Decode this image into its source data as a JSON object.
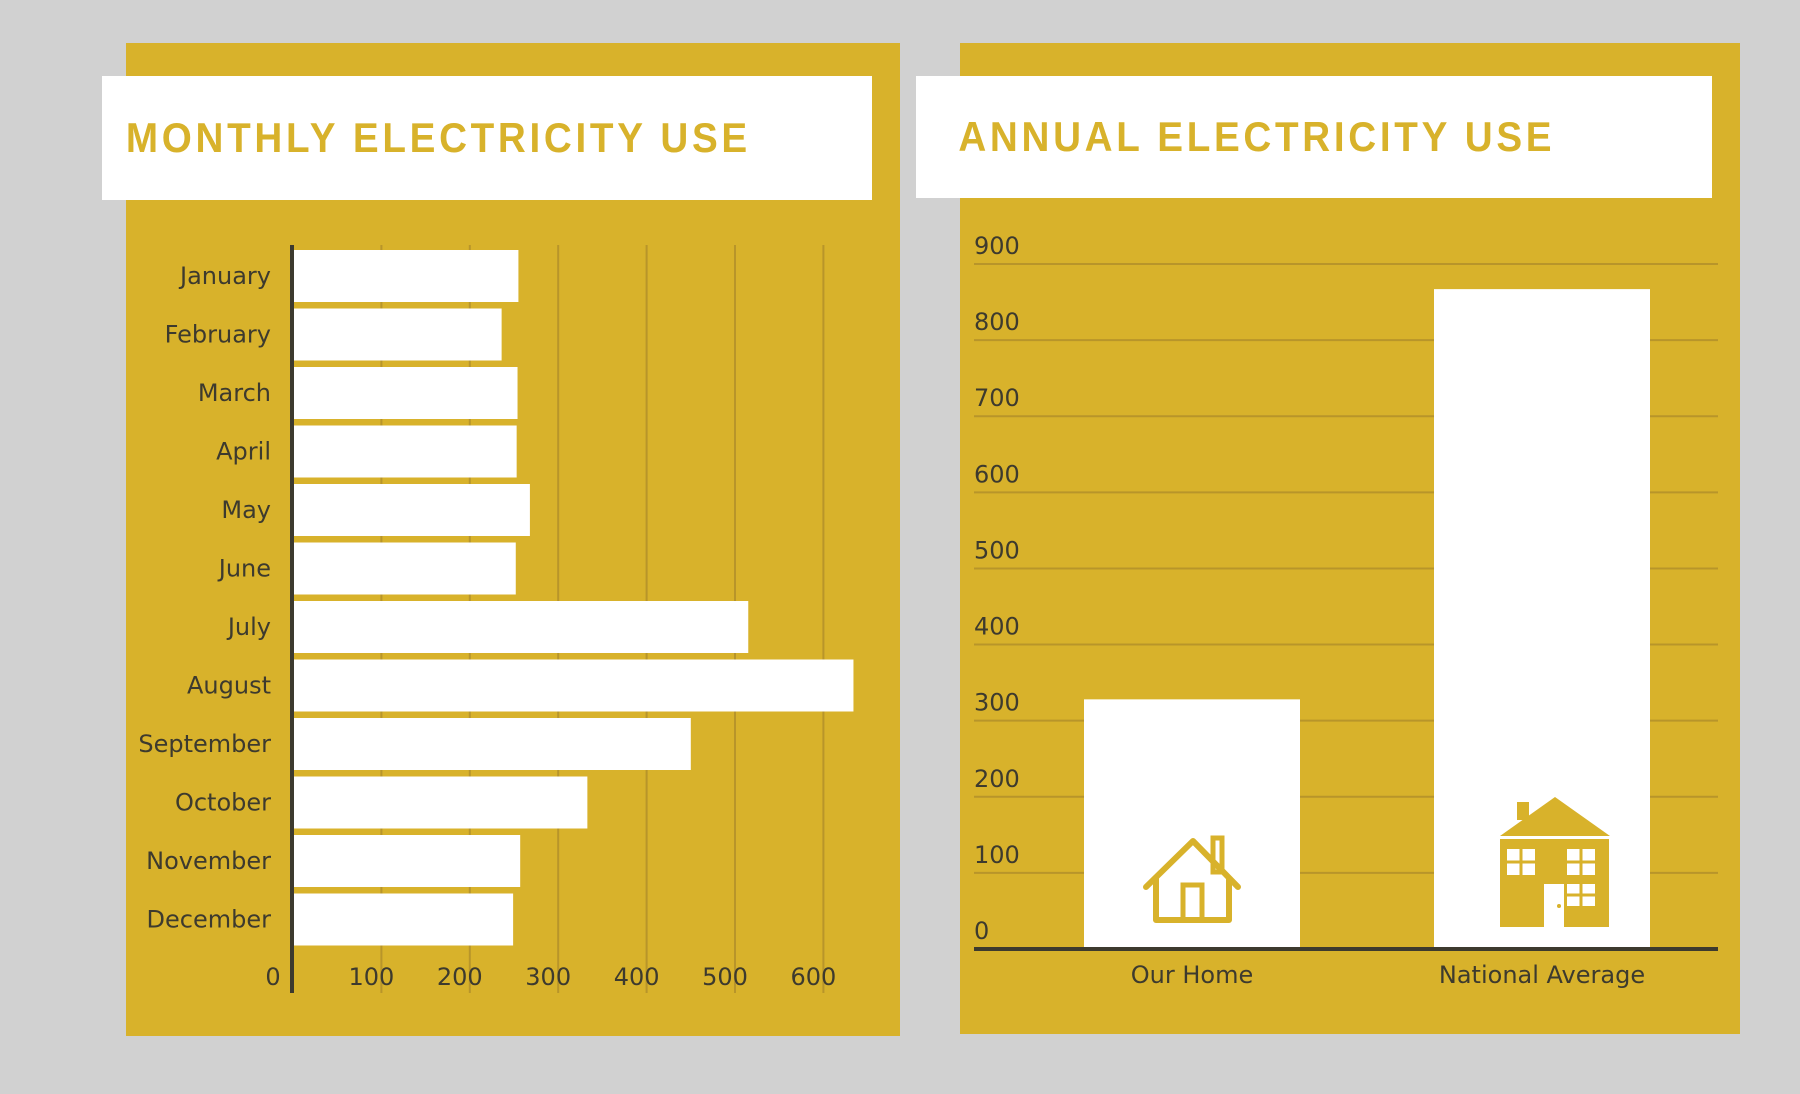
{
  "colors": {
    "background": "#d1d1d1",
    "panel": "#d8b22b",
    "bar": "#ffffff",
    "grid": "#b8952a",
    "axis": "#3d3a2e",
    "text": "#3d3a2e"
  },
  "monthly": {
    "title": "MONTHLY ELECTRICITY USE"
  },
  "annual": {
    "title": "ANNUAL ELECTRICITY USE",
    "icons": [
      "house-outline-icon",
      "two-story-house-icon"
    ]
  },
  "chart_data": [
    {
      "type": "bar",
      "orientation": "horizontal",
      "title": "MONTHLY ELECTRICITY USE",
      "categories": [
        "January",
        "February",
        "March",
        "April",
        "May",
        "June",
        "July",
        "August",
        "September",
        "October",
        "November",
        "December"
      ],
      "values": [
        255,
        236,
        254,
        253,
        268,
        252,
        515,
        634,
        450,
        333,
        257,
        249
      ],
      "xlim": [
        0,
        650
      ],
      "xticks": [
        0,
        100,
        200,
        300,
        400,
        500,
        600
      ],
      "grid": true,
      "xlabel": "",
      "ylabel": ""
    },
    {
      "type": "bar",
      "orientation": "vertical",
      "title": "ANNUAL ELECTRICITY USE",
      "categories": [
        "Our Home",
        "National Average"
      ],
      "values": [
        328,
        867
      ],
      "ylim": [
        0,
        900
      ],
      "yticks": [
        0,
        100,
        200,
        300,
        400,
        500,
        600,
        700,
        800,
        900
      ],
      "grid": true,
      "xlabel": "",
      "ylabel": ""
    }
  ]
}
